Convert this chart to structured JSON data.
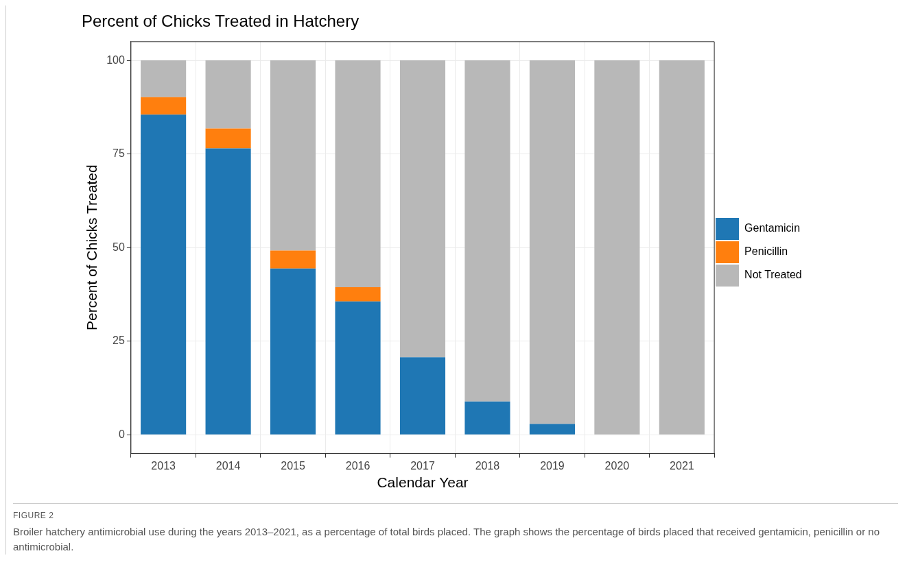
{
  "chart_data": {
    "type": "bar",
    "title": "Percent of Chicks Treated in Hatchery",
    "xlabel": "Calendar Year",
    "ylabel": "Percent of Chicks Treated",
    "categories": [
      "2013",
      "2014",
      "2015",
      "2016",
      "2017",
      "2018",
      "2019",
      "2020",
      "2021"
    ],
    "stacked": true,
    "series": [
      {
        "name": "Gentamicin",
        "color": "#1f77b4",
        "values": [
          85.5,
          76.5,
          44.4,
          35.6,
          20.7,
          8.9,
          2.9,
          0,
          0
        ]
      },
      {
        "name": "Penicillin",
        "color": "#ff7f0e",
        "values": [
          4.7,
          5.3,
          4.8,
          3.8,
          0,
          0,
          0,
          0,
          0
        ]
      },
      {
        "name": "Not Treated",
        "color": "#b8b8b8",
        "values": [
          9.8,
          18.2,
          50.8,
          60.6,
          79.3,
          91.1,
          97.1,
          100,
          100
        ]
      }
    ],
    "ylim": [
      -5,
      105
    ],
    "yticks": [
      0,
      25,
      50,
      75,
      100
    ],
    "grid": true,
    "legend": "right",
    "annotations": [
      "FIGURE 2",
      "Broiler hatchery antimicrobial use during the years 2013–2021, as a percentage of total birds placed. The graph shows the percentage of birds placed that received gentamicin, penicillin or no antimicrobial."
    ]
  }
}
